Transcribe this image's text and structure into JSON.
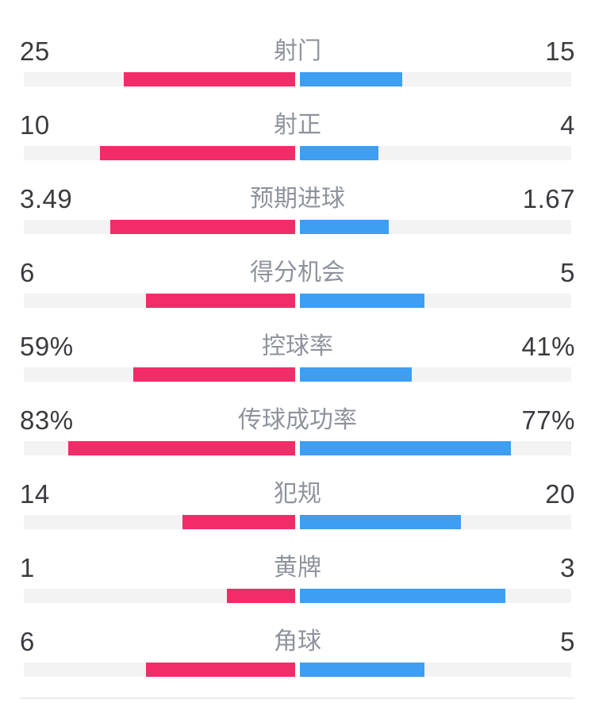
{
  "colors": {
    "home": "#F22C68",
    "away": "#3D9EF2",
    "track": "#F3F3F4",
    "value_text": "#3A3B40",
    "label_text": "#8E939D",
    "divider": "#ECECEE"
  },
  "stats": [
    {
      "label": "射门",
      "home": "25",
      "away": "15",
      "home_bar_pct": 62.5,
      "away_bar_pct": 37.5
    },
    {
      "label": "射正",
      "home": "10",
      "away": "4",
      "home_bar_pct": 71.4,
      "away_bar_pct": 28.6
    },
    {
      "label": "预期进球",
      "home": "3.49",
      "away": "1.67",
      "home_bar_pct": 67.6,
      "away_bar_pct": 32.4
    },
    {
      "label": "得分机会",
      "home": "6",
      "away": "5",
      "home_bar_pct": 54.5,
      "away_bar_pct": 45.5
    },
    {
      "label": "控球率",
      "home": "59%",
      "away": "41%",
      "home_bar_pct": 59.0,
      "away_bar_pct": 41.0
    },
    {
      "label": "传球成功率",
      "home": "83%",
      "away": "77%",
      "home_bar_pct": 83.0,
      "away_bar_pct": 77.0
    },
    {
      "label": "犯规",
      "home": "14",
      "away": "20",
      "home_bar_pct": 41.2,
      "away_bar_pct": 58.8
    },
    {
      "label": "黄牌",
      "home": "1",
      "away": "3",
      "home_bar_pct": 25.0,
      "away_bar_pct": 75.0
    },
    {
      "label": "角球",
      "home": "6",
      "away": "5",
      "home_bar_pct": 54.5,
      "away_bar_pct": 45.5
    }
  ],
  "chart_data": {
    "type": "bar",
    "orientation": "horizontal, bilateral from center (home grows left in pink, away grows right in blue)",
    "categories": [
      "射门",
      "射正",
      "预期进球",
      "得分机会",
      "控球率",
      "传球成功率",
      "犯规",
      "黄牌",
      "角球"
    ],
    "series": [
      {
        "name": "home (left, pink)",
        "color": "#F22C68",
        "values": [
          25,
          10,
          3.49,
          6,
          59,
          83,
          14,
          1,
          6
        ],
        "display": [
          "25",
          "10",
          "3.49",
          "6",
          "59%",
          "83%",
          "14",
          "1",
          "6"
        ]
      },
      {
        "name": "away (right, blue)",
        "color": "#3D9EF2",
        "values": [
          15,
          4,
          1.67,
          5,
          41,
          77,
          20,
          3,
          5
        ],
        "display": [
          "15",
          "4",
          "1.67",
          "5",
          "41%",
          "77%",
          "20",
          "3",
          "5"
        ]
      }
    ],
    "title": "",
    "xlabel": "",
    "ylabel": "",
    "legend_position": "none",
    "grid": false,
    "layout_hint": "count stats: bar width = value/(home+away) of half track; percent stats: bar width = pct of half track"
  }
}
